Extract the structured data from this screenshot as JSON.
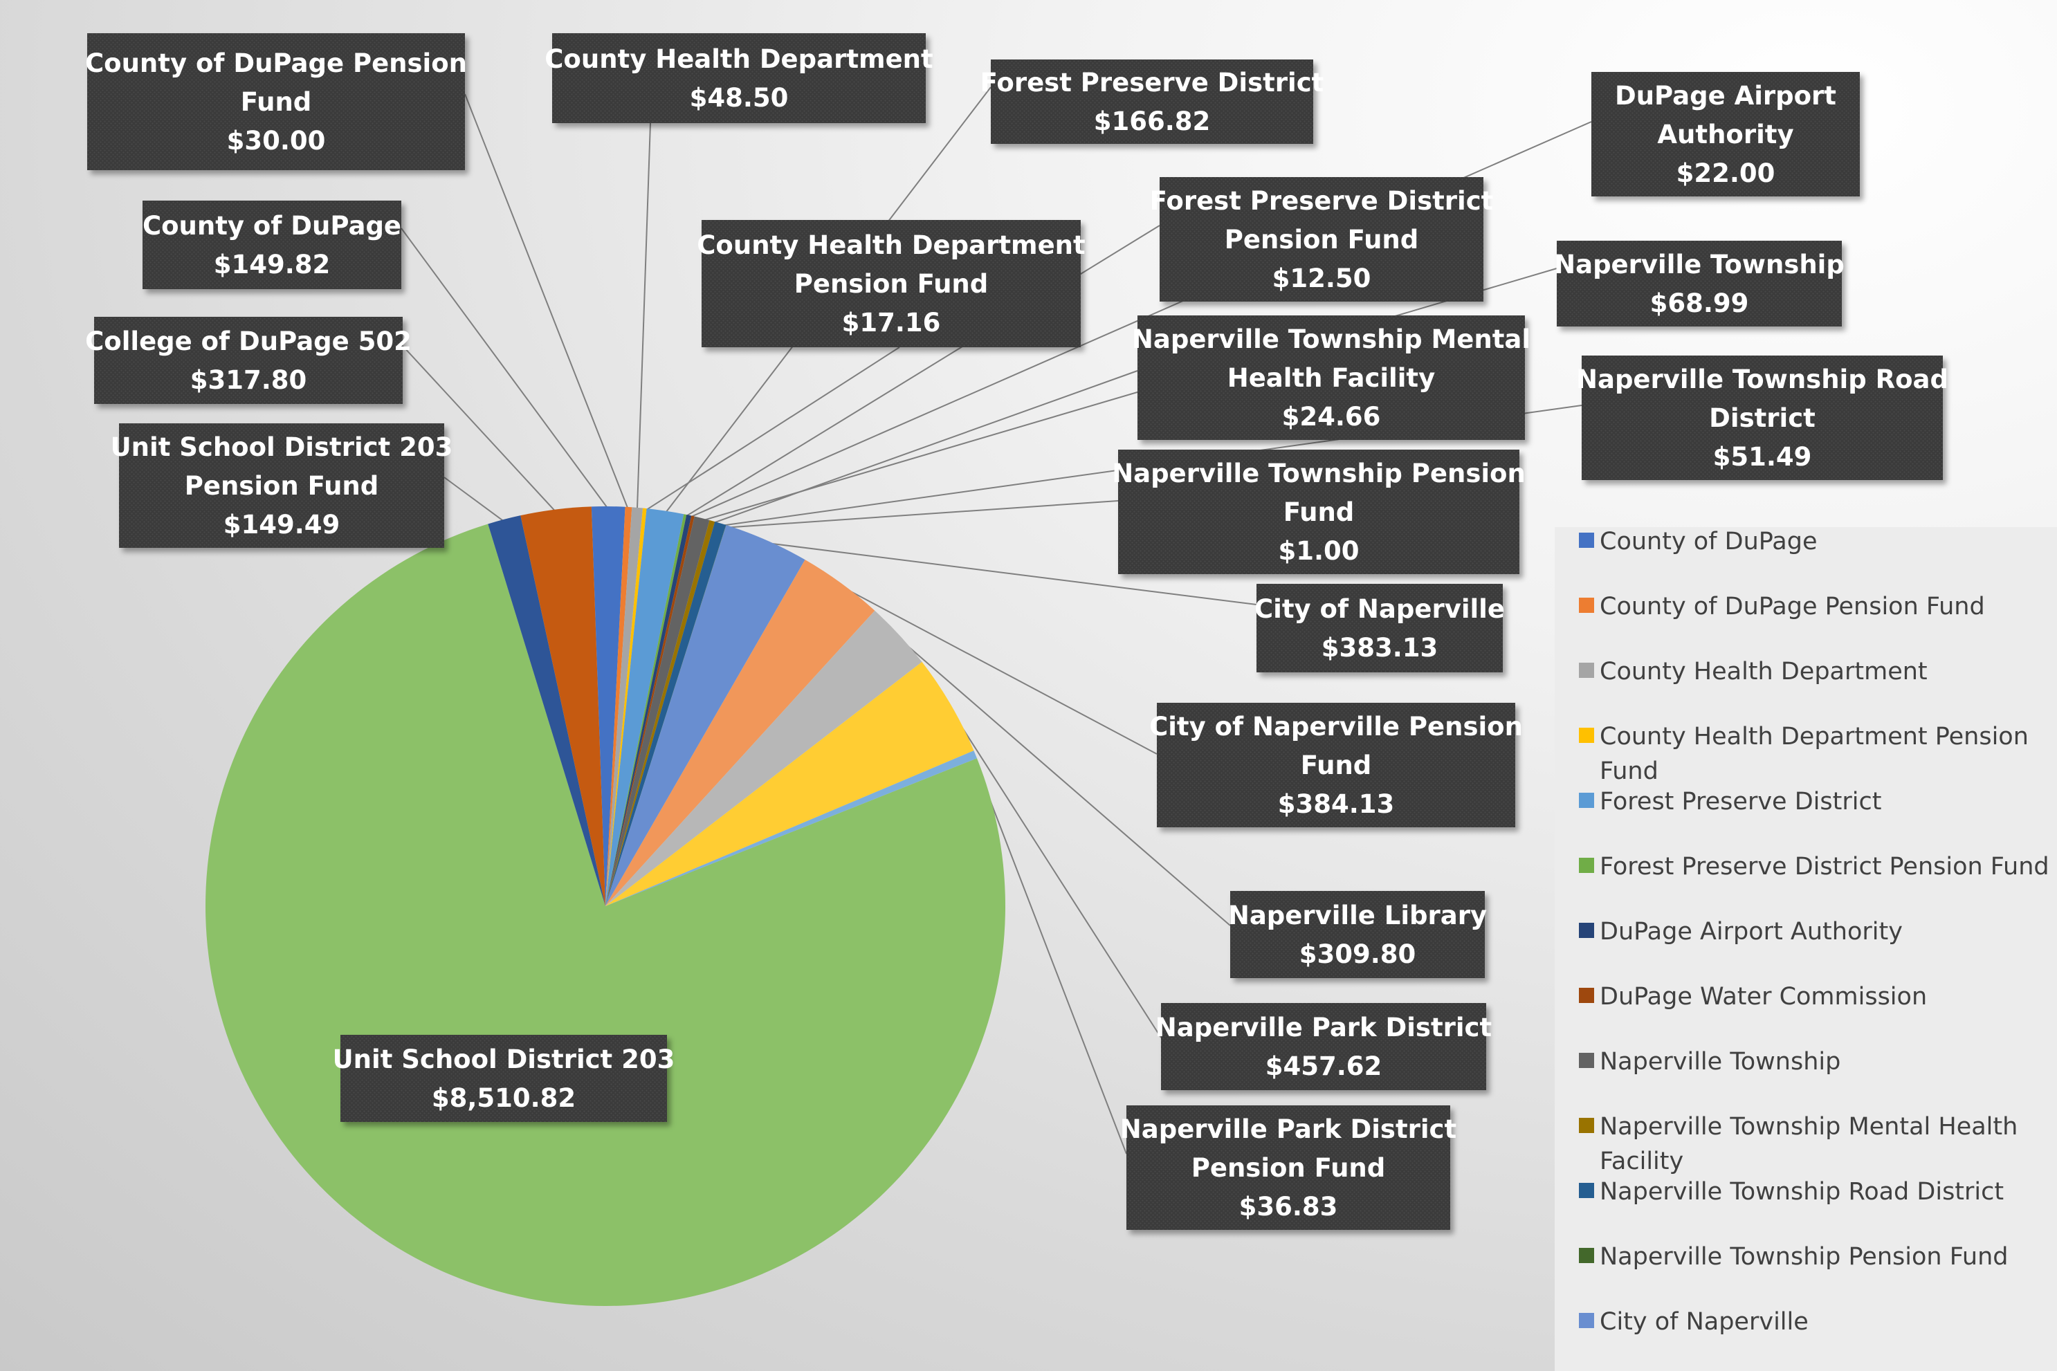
{
  "chart_data": {
    "type": "pie",
    "slices": [
      {
        "label": "County of DuPage",
        "value": 149.82,
        "color": "#4472C4"
      },
      {
        "label": "County of DuPage Pension Fund",
        "value": 30.0,
        "color": "#ED7D31"
      },
      {
        "label": "County Health Department",
        "value": 48.5,
        "color": "#A5A5A5"
      },
      {
        "label": "County Health Department Pension Fund",
        "value": 17.16,
        "color": "#FFC000"
      },
      {
        "label": "Forest Preserve District",
        "value": 166.82,
        "color": "#5B9BD5"
      },
      {
        "label": "Forest Preserve District Pension Fund",
        "value": 12.5,
        "color": "#70AD47"
      },
      {
        "label": "DuPage Airport Authority",
        "value": 22.0,
        "color": "#264478"
      },
      {
        "label": "DuPage Water Commission",
        "value": null,
        "color": "#9E480E"
      },
      {
        "label": "Naperville Township",
        "value": 68.99,
        "color": "#636363"
      },
      {
        "label": "Naperville Township Mental Health Facility",
        "value": 24.66,
        "color": "#997300"
      },
      {
        "label": "Naperville Township Road District",
        "value": 51.49,
        "color": "#255E91"
      },
      {
        "label": "Naperville Township Pension Fund",
        "value": 1.0,
        "color": "#43682B"
      },
      {
        "label": "City of Naperville",
        "value": 383.13,
        "color": "#698ED0"
      },
      {
        "label": "City of Naperville Pension Fund",
        "value": 384.13,
        "color": "#F1975A"
      },
      {
        "label": "Naperville Library",
        "value": 309.8,
        "color": "#B7B7B7"
      },
      {
        "label": "Naperville Park District",
        "value": 457.62,
        "color": "#FFCD33"
      },
      {
        "label": "Naperville Park District Pension Fund",
        "value": 36.83,
        "color": "#7CAFDD"
      },
      {
        "label": "Unit School District 203",
        "value": 8510.82,
        "color": "#8CC168"
      },
      {
        "label": "Unit School District 203 Pension Fund",
        "value": 149.49,
        "color": "#2E5597"
      },
      {
        "label": "College of DuPage 502",
        "value": 317.8,
        "color": "#C55A11"
      }
    ],
    "data_labels": [
      {
        "lines": [
          "County of DuPage Pension",
          "Fund",
          "$30.00"
        ]
      },
      {
        "lines": [
          "County Health Department",
          "$48.50"
        ]
      },
      {
        "lines": [
          "Forest Preserve District",
          "$166.82"
        ]
      },
      {
        "lines": [
          "DuPage Airport",
          "Authority",
          "$22.00"
        ]
      },
      {
        "lines": [
          "County of DuPage",
          "$149.82"
        ]
      },
      {
        "lines": [
          "County Health Department",
          "Pension Fund",
          "$17.16"
        ]
      },
      {
        "lines": [
          "Forest Preserve District",
          "Pension Fund",
          "$12.50"
        ]
      },
      {
        "lines": [
          "Naperville Township",
          "$68.99"
        ]
      },
      {
        "lines": [
          "College of DuPage 502",
          "$317.80"
        ]
      },
      {
        "lines": [
          "Naperville Township Mental",
          "Health Facility",
          "$24.66"
        ]
      },
      {
        "lines": [
          "Naperville Township Road",
          "District",
          "$51.49"
        ]
      },
      {
        "lines": [
          "Unit School District 203",
          "Pension Fund",
          "$149.49"
        ]
      },
      {
        "lines": [
          "Naperville Township Pension",
          "Fund",
          "$1.00"
        ]
      },
      {
        "lines": [
          "City of Naperville",
          "$383.13"
        ]
      },
      {
        "lines": [
          "City of Naperville Pension",
          "Fund",
          "$384.13"
        ]
      },
      {
        "lines": [
          "Naperville Library",
          "$309.80"
        ]
      },
      {
        "lines": [
          "Naperville Park District",
          "$457.62"
        ]
      },
      {
        "lines": [
          "Naperville Park District",
          "Pension Fund",
          "$36.83"
        ]
      },
      {
        "lines": [
          "Unit School District 203",
          "$8,510.82"
        ]
      }
    ],
    "legend": {
      "position": "right",
      "entries": [
        {
          "lines": [
            "County of DuPage"
          ],
          "color": "#4472C4"
        },
        {
          "lines": [
            "County of DuPage Pension Fund"
          ],
          "color": "#ED7D31"
        },
        {
          "lines": [
            "County Health Department"
          ],
          "color": "#A5A5A5"
        },
        {
          "lines": [
            "County Health Department Pension",
            "Fund"
          ],
          "color": "#FFC000"
        },
        {
          "lines": [
            "Forest Preserve District"
          ],
          "color": "#5B9BD5"
        },
        {
          "lines": [
            "Forest Preserve District Pension Fund"
          ],
          "color": "#70AD47"
        },
        {
          "lines": [
            "DuPage Airport Authority"
          ],
          "color": "#264478"
        },
        {
          "lines": [
            "DuPage Water Commission"
          ],
          "color": "#9E480E"
        },
        {
          "lines": [
            "Naperville Township"
          ],
          "color": "#636363"
        },
        {
          "lines": [
            "Naperville Township Mental Health",
            "Facility"
          ],
          "color": "#997300"
        },
        {
          "lines": [
            "Naperville Township Road District"
          ],
          "color": "#255E91"
        },
        {
          "lines": [
            "Naperville Township Pension Fund"
          ],
          "color": "#43682B"
        },
        {
          "lines": [
            "City of Naperville"
          ],
          "color": "#698ED0"
        }
      ]
    }
  }
}
